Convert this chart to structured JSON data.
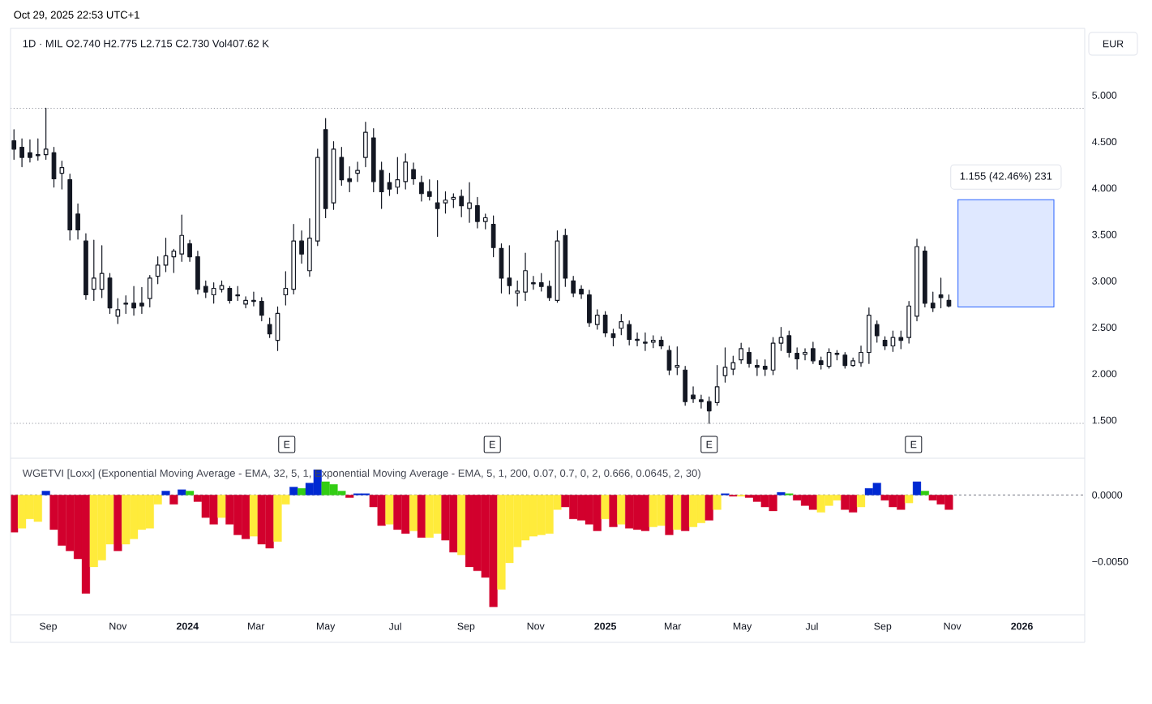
{
  "chart_data": [
    {
      "type": "candlestick",
      "title": "1D · MIL O2.740 H2.775 L2.715 C2.730 Vol407.62 K",
      "ylabel": "EUR",
      "color": "#131722",
      "x": [
        "2023-08-02",
        "2023-08-09",
        "2023-08-16",
        "2023-08-23",
        "2023-08-30",
        "2023-09-06",
        "2023-09-13",
        "2023-09-20",
        "2023-09-27",
        "2023-10-04",
        "2023-10-11",
        "2023-10-18",
        "2023-10-25",
        "2023-11-01",
        "2023-11-08",
        "2023-11-15",
        "2023-11-22",
        "2023-11-29",
        "2023-12-06",
        "2023-12-13",
        "2023-12-20",
        "2023-12-27",
        "2024-01-03",
        "2024-01-10",
        "2024-01-17",
        "2024-01-24",
        "2024-01-31",
        "2024-02-07",
        "2024-02-14",
        "2024-02-21",
        "2024-02-28",
        "2024-03-06",
        "2024-03-13",
        "2024-03-20",
        "2024-03-27",
        "2024-04-03",
        "2024-04-10",
        "2024-04-17",
        "2024-04-24",
        "2024-05-01",
        "2024-05-08",
        "2024-05-15",
        "2024-05-22",
        "2024-05-29",
        "2024-06-05",
        "2024-06-12",
        "2024-06-19",
        "2024-06-26",
        "2024-07-03",
        "2024-07-10",
        "2024-07-17",
        "2024-07-24",
        "2024-07-31",
        "2024-08-07",
        "2024-08-14",
        "2024-08-21",
        "2024-08-28",
        "2024-09-04",
        "2024-09-11",
        "2024-09-18",
        "2024-09-25",
        "2024-10-02",
        "2024-10-09",
        "2024-10-16",
        "2024-10-23",
        "2024-10-30",
        "2024-11-06",
        "2024-11-13",
        "2024-11-20",
        "2024-11-27",
        "2024-12-04",
        "2024-12-11",
        "2024-12-18",
        "2024-12-25",
        "2025-01-01",
        "2025-01-08",
        "2025-01-15",
        "2025-01-22",
        "2025-01-29",
        "2025-02-05",
        "2025-02-12",
        "2025-02-19",
        "2025-02-26",
        "2025-03-05",
        "2025-03-12",
        "2025-03-19",
        "2025-03-26",
        "2025-04-02",
        "2025-04-09",
        "2025-04-16",
        "2025-04-23",
        "2025-04-30",
        "2025-05-07",
        "2025-05-14",
        "2025-05-21",
        "2025-05-28",
        "2025-06-04",
        "2025-06-11",
        "2025-06-18",
        "2025-06-25",
        "2025-07-02",
        "2025-07-09",
        "2025-07-16",
        "2025-07-23",
        "2025-07-30",
        "2025-08-06",
        "2025-08-13",
        "2025-08-20",
        "2025-08-27",
        "2025-09-03",
        "2025-09-10",
        "2025-09-17",
        "2025-09-24",
        "2025-10-01",
        "2025-10-08",
        "2025-10-15",
        "2025-10-22",
        "2025-10-29"
      ],
      "ohlc": [
        [
          4.51,
          4.63,
          4.31,
          4.42
        ],
        [
          4.44,
          4.53,
          4.23,
          4.33
        ],
        [
          4.38,
          4.52,
          4.28,
          4.33
        ],
        [
          4.35,
          4.53,
          4.3,
          4.36
        ],
        [
          4.36,
          4.86,
          4.31,
          4.42
        ],
        [
          4.38,
          4.44,
          4.01,
          4.1
        ],
        [
          4.16,
          4.29,
          3.99,
          4.22
        ],
        [
          4.09,
          4.15,
          3.44,
          3.55
        ],
        [
          3.72,
          3.83,
          3.45,
          3.55
        ],
        [
          3.43,
          3.51,
          2.8,
          2.85
        ],
        [
          2.91,
          3.44,
          2.79,
          3.03
        ],
        [
          2.91,
          3.38,
          2.82,
          3.08
        ],
        [
          3.03,
          3.08,
          2.65,
          2.71
        ],
        [
          2.62,
          2.81,
          2.54,
          2.69
        ],
        [
          2.76,
          2.84,
          2.65,
          2.75
        ],
        [
          2.76,
          2.94,
          2.63,
          2.71
        ],
        [
          2.76,
          2.93,
          2.65,
          2.73
        ],
        [
          2.81,
          3.06,
          2.72,
          3.03
        ],
        [
          3.05,
          3.26,
          2.97,
          3.17
        ],
        [
          3.17,
          3.46,
          3.1,
          3.27
        ],
        [
          3.26,
          3.34,
          3.09,
          3.32
        ],
        [
          3.29,
          3.71,
          3.21,
          3.49
        ],
        [
          3.4,
          3.44,
          3.21,
          3.26
        ],
        [
          3.26,
          3.32,
          2.86,
          2.91
        ],
        [
          2.94,
          3.0,
          2.82,
          2.88
        ],
        [
          2.85,
          2.98,
          2.76,
          2.92
        ],
        [
          2.91,
          3.0,
          2.88,
          2.95
        ],
        [
          2.92,
          2.94,
          2.76,
          2.79
        ],
        [
          2.84,
          2.94,
          2.79,
          2.85
        ],
        [
          2.75,
          2.83,
          2.71,
          2.79
        ],
        [
          2.79,
          2.88,
          2.73,
          2.78
        ],
        [
          2.78,
          2.82,
          2.57,
          2.63
        ],
        [
          2.53,
          2.6,
          2.39,
          2.43
        ],
        [
          2.36,
          2.72,
          2.25,
          2.65
        ],
        [
          2.85,
          3.1,
          2.74,
          2.92
        ],
        [
          2.91,
          3.61,
          2.86,
          3.43
        ],
        [
          3.43,
          3.54,
          3.19,
          3.29
        ],
        [
          3.11,
          3.67,
          3.05,
          3.46
        ],
        [
          3.43,
          4.42,
          3.38,
          4.33
        ],
        [
          4.63,
          4.75,
          3.68,
          3.78
        ],
        [
          3.84,
          4.5,
          3.77,
          4.42
        ],
        [
          4.33,
          4.44,
          4.03,
          4.09
        ],
        [
          4.1,
          4.23,
          3.96,
          4.07
        ],
        [
          4.16,
          4.28,
          4.07,
          4.19
        ],
        [
          4.33,
          4.71,
          4.23,
          4.6
        ],
        [
          4.54,
          4.64,
          3.96,
          4.07
        ],
        [
          4.19,
          4.28,
          3.78,
          3.96
        ],
        [
          4.06,
          4.16,
          3.92,
          3.99
        ],
        [
          4.01,
          4.33,
          3.94,
          4.09
        ],
        [
          4.07,
          4.37,
          3.99,
          4.28
        ],
        [
          4.2,
          4.27,
          4.04,
          4.1
        ],
        [
          4.06,
          4.13,
          3.86,
          3.94
        ],
        [
          3.96,
          4.09,
          3.87,
          3.91
        ],
        [
          3.84,
          4.08,
          3.48,
          3.78
        ],
        [
          3.84,
          3.96,
          3.73,
          3.87
        ],
        [
          3.88,
          3.94,
          3.79,
          3.9
        ],
        [
          3.91,
          3.98,
          3.69,
          3.81
        ],
        [
          3.78,
          4.06,
          3.63,
          3.84
        ],
        [
          3.81,
          3.9,
          3.57,
          3.64
        ],
        [
          3.64,
          3.72,
          3.56,
          3.68
        ],
        [
          3.61,
          3.7,
          3.26,
          3.36
        ],
        [
          3.35,
          3.4,
          2.87,
          3.03
        ],
        [
          3.03,
          3.38,
          2.86,
          2.95
        ],
        [
          2.87,
          3.0,
          2.73,
          2.89
        ],
        [
          2.88,
          3.3,
          2.79,
          3.11
        ],
        [
          2.98,
          3.05,
          2.91,
          2.97
        ],
        [
          2.98,
          3.08,
          2.89,
          2.94
        ],
        [
          2.94,
          3.0,
          2.79,
          2.82
        ],
        [
          2.79,
          3.54,
          2.77,
          3.43
        ],
        [
          3.49,
          3.56,
          2.94,
          3.03
        ],
        [
          3.0,
          3.05,
          2.83,
          2.87
        ],
        [
          2.91,
          2.95,
          2.81,
          2.86
        ],
        [
          2.85,
          2.9,
          2.51,
          2.55
        ],
        [
          2.53,
          2.69,
          2.48,
          2.63
        ],
        [
          2.63,
          2.67,
          2.4,
          2.44
        ],
        [
          2.43,
          2.48,
          2.3,
          2.39
        ],
        [
          2.49,
          2.64,
          2.42,
          2.56
        ],
        [
          2.53,
          2.57,
          2.31,
          2.37
        ],
        [
          2.37,
          2.44,
          2.3,
          2.36
        ],
        [
          2.33,
          2.44,
          2.25,
          2.34
        ],
        [
          2.34,
          2.41,
          2.28,
          2.36
        ],
        [
          2.36,
          2.4,
          2.27,
          2.3
        ],
        [
          2.25,
          2.3,
          1.99,
          2.04
        ],
        [
          2.07,
          2.29,
          1.99,
          2.09
        ],
        [
          2.04,
          2.08,
          1.66,
          1.7
        ],
        [
          1.77,
          1.86,
          1.69,
          1.73
        ],
        [
          1.72,
          1.77,
          1.63,
          1.7
        ],
        [
          1.7,
          1.75,
          1.465,
          1.6
        ],
        [
          1.69,
          2.09,
          1.66,
          1.86
        ],
        [
          1.98,
          2.28,
          1.91,
          2.07
        ],
        [
          2.05,
          2.19,
          1.99,
          2.12
        ],
        [
          2.15,
          2.33,
          2.11,
          2.27
        ],
        [
          2.23,
          2.28,
          2.07,
          2.11
        ],
        [
          2.09,
          2.15,
          1.98,
          2.07
        ],
        [
          2.08,
          2.15,
          1.98,
          2.05
        ],
        [
          2.04,
          2.39,
          1.99,
          2.33
        ],
        [
          2.33,
          2.5,
          2.25,
          2.39
        ],
        [
          2.41,
          2.46,
          2.18,
          2.23
        ],
        [
          2.22,
          2.28,
          2.05,
          2.16
        ],
        [
          2.21,
          2.27,
          2.15,
          2.23
        ],
        [
          2.27,
          2.34,
          2.11,
          2.14
        ],
        [
          2.14,
          2.18,
          2.05,
          2.1
        ],
        [
          2.08,
          2.27,
          2.06,
          2.23
        ],
        [
          2.22,
          2.25,
          2.15,
          2.21
        ],
        [
          2.2,
          2.23,
          2.06,
          2.09
        ],
        [
          2.09,
          2.17,
          2.08,
          2.14
        ],
        [
          2.12,
          2.3,
          2.08,
          2.23
        ],
        [
          2.23,
          2.71,
          2.11,
          2.63
        ],
        [
          2.53,
          2.57,
          2.34,
          2.41
        ],
        [
          2.36,
          2.4,
          2.26,
          2.3
        ],
        [
          2.3,
          2.46,
          2.24,
          2.39
        ],
        [
          2.39,
          2.46,
          2.27,
          2.36
        ],
        [
          2.39,
          2.78,
          2.33,
          2.73
        ],
        [
          2.62,
          3.45,
          2.57,
          3.37
        ],
        [
          3.32,
          3.37,
          2.72,
          2.76
        ],
        [
          2.76,
          2.88,
          2.67,
          2.71
        ],
        [
          2.85,
          3.03,
          2.71,
          2.82
        ],
        [
          2.79,
          2.85,
          2.72,
          2.73
        ]
      ],
      "xlim": [
        "2023-07-30",
        "2026-02-25"
      ],
      "ylim": [
        1.09,
        5.72
      ],
      "yticks": [
        {
          "value": 1.5,
          "label": "1.500"
        },
        {
          "value": 2,
          "label": "2.000"
        },
        {
          "value": 2.5,
          "label": "2.500"
        },
        {
          "value": 3,
          "label": "3.000"
        },
        {
          "value": 3.5,
          "label": "3.500"
        },
        {
          "value": 4,
          "label": "4.000"
        },
        {
          "value": 4.5,
          "label": "4.500"
        },
        {
          "value": 5,
          "label": "5.000"
        }
      ],
      "tick_labels": "y",
      "ref_lines": [
        {
          "axis": "y",
          "value": 4.86,
          "line_style": "dotted",
          "color": "#9598a1"
        },
        {
          "axis": "y",
          "value": 1.465,
          "line_style": "dotted",
          "color": "#9598a1"
        }
      ],
      "bands": [
        {
          "axis": "y",
          "from": 2.72,
          "to": 3.875,
          "label": "1.155 (42.46%) 231",
          "color": "#dfe8ff"
        }
      ],
      "annotations": [
        "Oct 29, 2025 22:53 UTC+1",
        {
          "text": "E",
          "x": "2024-03-28"
        },
        {
          "text": "E",
          "x": "2024-09-24"
        },
        {
          "text": "E",
          "x": "2025-04-02"
        },
        {
          "text": "E",
          "x": "2025-09-28"
        }
      ]
    },
    {
      "type": "bar",
      "title": "WGETVI [Loxx] (Exponential Moving Average - EMA, 32, 5, 1, Exponential Moving Average - EMA, 5, 1, 200, 0.07, 0.7, 0, 2, 0.666, 0.0645, 2, 30)",
      "x": [
        "2023-08-02",
        "2023-08-09",
        "2023-08-16",
        "2023-08-23",
        "2023-08-30",
        "2023-09-06",
        "2023-09-13",
        "2023-09-20",
        "2023-09-27",
        "2023-10-04",
        "2023-10-11",
        "2023-10-18",
        "2023-10-25",
        "2023-11-01",
        "2023-11-08",
        "2023-11-15",
        "2023-11-22",
        "2023-11-29",
        "2023-12-06",
        "2023-12-13",
        "2023-12-20",
        "2023-12-27",
        "2024-01-03",
        "2024-01-10",
        "2024-01-17",
        "2024-01-24",
        "2024-01-31",
        "2024-02-07",
        "2024-02-14",
        "2024-02-21",
        "2024-02-28",
        "2024-03-06",
        "2024-03-13",
        "2024-03-20",
        "2024-03-27",
        "2024-04-03",
        "2024-04-10",
        "2024-04-17",
        "2024-04-24",
        "2024-05-01",
        "2024-05-08",
        "2024-05-15",
        "2024-05-22",
        "2024-05-29",
        "2024-06-05",
        "2024-06-12",
        "2024-06-19",
        "2024-06-26",
        "2024-07-03",
        "2024-07-10",
        "2024-07-17",
        "2024-07-24",
        "2024-07-31",
        "2024-08-07",
        "2024-08-14",
        "2024-08-21",
        "2024-08-28",
        "2024-09-04",
        "2024-09-11",
        "2024-09-18",
        "2024-09-25",
        "2024-10-02",
        "2024-10-09",
        "2024-10-16",
        "2024-10-23",
        "2024-10-30",
        "2024-11-06",
        "2024-11-13",
        "2024-11-20",
        "2024-11-27",
        "2024-12-04",
        "2024-12-11",
        "2024-12-18",
        "2024-12-25",
        "2025-01-01",
        "2025-01-08",
        "2025-01-15",
        "2025-01-22",
        "2025-01-29",
        "2025-02-05",
        "2025-02-12",
        "2025-02-19",
        "2025-02-26",
        "2025-03-05",
        "2025-03-12",
        "2025-03-19",
        "2025-03-26",
        "2025-04-02",
        "2025-04-09",
        "2025-04-16",
        "2025-04-23",
        "2025-04-30",
        "2025-05-07",
        "2025-05-14",
        "2025-05-21",
        "2025-05-28",
        "2025-06-04",
        "2025-06-11",
        "2025-06-18",
        "2025-06-25",
        "2025-07-02",
        "2025-07-09",
        "2025-07-16",
        "2025-07-23",
        "2025-07-30",
        "2025-08-06",
        "2025-08-13",
        "2025-08-20",
        "2025-08-27",
        "2025-09-03",
        "2025-09-10",
        "2025-09-17",
        "2025-09-24",
        "2025-10-01",
        "2025-10-08",
        "2025-10-15",
        "2025-10-22",
        "2025-10-29"
      ],
      "values": [
        -0.0028,
        -0.0025,
        -0.0018,
        -0.002,
        0.0003,
        -0.0026,
        -0.0038,
        -0.0042,
        -0.0048,
        -0.0074,
        -0.0054,
        -0.0049,
        -0.0037,
        -0.0042,
        -0.0037,
        -0.0033,
        -0.0026,
        -0.0025,
        -0.0007,
        0.0003,
        -0.0007,
        0.0004,
        0.0003,
        -0.0005,
        -0.0017,
        -0.0022,
        -0.0017,
        -0.0022,
        -0.003,
        -0.0033,
        -0.0031,
        -0.0037,
        -0.004,
        -0.0035,
        -0.0007,
        0.0006,
        0.0005,
        0.0009,
        0.0019,
        0.001,
        0.0008,
        0.0003,
        -0.0002,
        0.0001,
        0.0001,
        -0.0009,
        -0.0023,
        -0.0022,
        -0.0026,
        -0.0029,
        -0.0027,
        -0.0032,
        -0.0032,
        -0.0029,
        -0.0034,
        -0.0043,
        -0.0045,
        -0.0054,
        -0.0057,
        -0.0062,
        -0.0084,
        -0.0071,
        -0.0051,
        -0.0039,
        -0.0034,
        -0.0031,
        -0.003,
        -0.0029,
        -0.0011,
        -0.0009,
        -0.0018,
        -0.0019,
        -0.0022,
        -0.0027,
        -0.0018,
        -0.0024,
        -0.0022,
        -0.0025,
        -0.0026,
        -0.0027,
        -0.0024,
        -0.0023,
        -0.003,
        -0.0026,
        -0.0027,
        -0.0024,
        -0.0021,
        -0.0019,
        -0.0011,
        0.0001,
        -0.0001,
        -0.0001,
        -0.0002,
        -0.0005,
        -0.0009,
        -0.0012,
        0.0002,
        0.0001,
        -0.0004,
        -0.0008,
        -0.0011,
        -0.0013,
        -0.0008,
        -0.0004,
        -0.0011,
        -0.0013,
        -0.0009,
        0.0005,
        0.0009,
        -0.0004,
        -0.0009,
        -0.0011,
        -0.0006,
        0.001,
        0.0003,
        -0.0004,
        -0.0007,
        -0.0011
      ],
      "colors": [
        "#d2002d",
        "#ffeb3b",
        "#ffeb3b",
        "#ffeb3b",
        "#0029d2",
        "#d2002d",
        "#d2002d",
        "#d2002d",
        "#d2002d",
        "#d2002d",
        "#ffeb3b",
        "#ffeb3b",
        "#ffeb3b",
        "#d2002d",
        "#ffeb3b",
        "#ffeb3b",
        "#ffeb3b",
        "#ffeb3b",
        "#ffeb3b",
        "#0029d2",
        "#d2002d",
        "#0029d2",
        "#32cd14",
        "#d2002d",
        "#d2002d",
        "#d2002d",
        "#ffeb3b",
        "#d2002d",
        "#d2002d",
        "#d2002d",
        "#ffeb3b",
        "#d2002d",
        "#d2002d",
        "#ffeb3b",
        "#ffeb3b",
        "#0029d2",
        "#32cd14",
        "#0029d2",
        "#0029d2",
        "#32cd14",
        "#32cd14",
        "#32cd14",
        "#d2002d",
        "#0029d2",
        "#0029d2",
        "#d2002d",
        "#d2002d",
        "#ffeb3b",
        "#d2002d",
        "#d2002d",
        "#ffeb3b",
        "#d2002d",
        "#ffeb3b",
        "#ffeb3b",
        "#d2002d",
        "#d2002d",
        "#ffeb3b",
        "#d2002d",
        "#d2002d",
        "#d2002d",
        "#d2002d",
        "#ffeb3b",
        "#ffeb3b",
        "#ffeb3b",
        "#ffeb3b",
        "#ffeb3b",
        "#ffeb3b",
        "#ffeb3b",
        "#ffeb3b",
        "#d2002d",
        "#d2002d",
        "#d2002d",
        "#d2002d",
        "#d2002d",
        "#ffeb3b",
        "#d2002d",
        "#ffeb3b",
        "#d2002d",
        "#d2002d",
        "#d2002d",
        "#ffeb3b",
        "#ffeb3b",
        "#d2002d",
        "#ffeb3b",
        "#d2002d",
        "#ffeb3b",
        "#ffeb3b",
        "#d2002d",
        "#ffeb3b",
        "#0029d2",
        "#d2002d",
        "#ffeb3b",
        "#d2002d",
        "#d2002d",
        "#d2002d",
        "#d2002d",
        "#0029d2",
        "#32cd14",
        "#d2002d",
        "#d2002d",
        "#d2002d",
        "#ffeb3b",
        "#ffeb3b",
        "#ffeb3b",
        "#d2002d",
        "#d2002d",
        "#ffeb3b",
        "#0029d2",
        "#0029d2",
        "#d2002d",
        "#d2002d",
        "#d2002d",
        "#ffeb3b",
        "#0029d2",
        "#32cd14",
        "#d2002d",
        "#d2002d",
        "#d2002d"
      ],
      "xlim": [
        "2023-07-30",
        "2026-02-25"
      ],
      "xticks": [
        {
          "value": "2023-09-01",
          "label": "Sep"
        },
        {
          "value": "2023-11-01",
          "label": "Nov"
        },
        {
          "value": "2024-01-01",
          "label": "2024"
        },
        {
          "value": "2024-03-01",
          "label": "Mar"
        },
        {
          "value": "2024-05-01",
          "label": "May"
        },
        {
          "value": "2024-07-01",
          "label": "Jul"
        },
        {
          "value": "2024-09-01",
          "label": "Sep"
        },
        {
          "value": "2024-11-01",
          "label": "Nov"
        },
        {
          "value": "2025-01-01",
          "label": "2025"
        },
        {
          "value": "2025-03-01",
          "label": "Mar"
        },
        {
          "value": "2025-05-01",
          "label": "May"
        },
        {
          "value": "2025-07-01",
          "label": "Jul"
        },
        {
          "value": "2025-09-01",
          "label": "Sep"
        },
        {
          "value": "2025-11-01",
          "label": "Nov"
        },
        {
          "value": "2026-01-01",
          "label": "2026"
        }
      ],
      "ylim": [
        -0.009,
        0.0027
      ],
      "yticks": [
        {
          "value": -0.005,
          "label": "−0.0050"
        },
        {
          "value": 0,
          "label": "0.0000"
        }
      ],
      "ref_lines": [
        {
          "axis": "y",
          "value": 0,
          "line_style": "dashed",
          "color": "#787b86"
        }
      ]
    }
  ]
}
